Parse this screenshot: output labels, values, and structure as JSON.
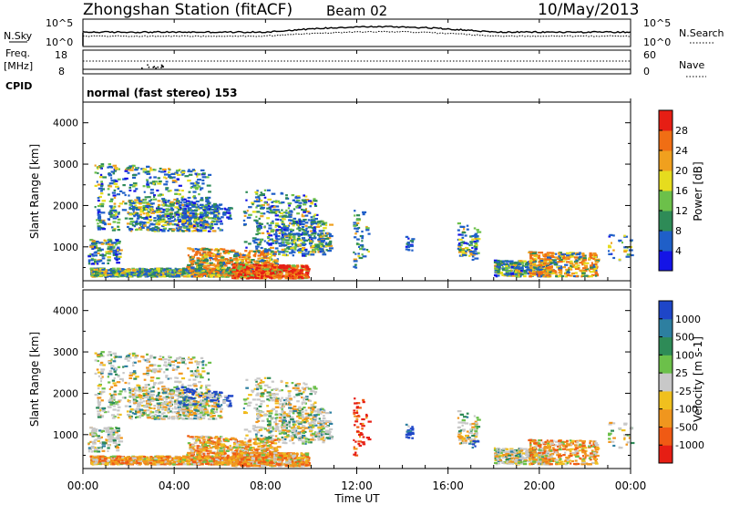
{
  "header": {
    "station": "Zhongshan Station (fitACF)",
    "beam": "Beam 02",
    "date": "10/May/2013"
  },
  "mode_text": "normal (fast stereo) 153",
  "top_panels": {
    "nsky_label": "N.Sky",
    "nsky_ticks": [
      "10^5",
      "10^0"
    ],
    "nsearch_label": "N.Search",
    "nsearch_ticks": [
      "10^5",
      "10^0"
    ],
    "freq_label_1": "Freq.",
    "freq_label_2": "[MHz]",
    "freq_ticks": [
      "18",
      "8"
    ],
    "nave_label": "Nave",
    "nave_ticks": [
      "60",
      "0"
    ],
    "cpid_label": "CPID"
  },
  "chart_data": [
    {
      "type": "heatmap",
      "name": "power",
      "ylabel": "Slant Range [km]",
      "ylim": [
        180,
        4500
      ],
      "yticks": [
        "4000",
        "3000",
        "2000",
        "1000"
      ],
      "colorbar_label": "Power [dB]",
      "colorbar_ticks": [
        "28",
        "24",
        "20",
        "16",
        "12",
        "8",
        "4"
      ],
      "colors": [
        "#1414e6",
        "#1f5fc8",
        "#2e8b57",
        "#6cc04a",
        "#e6dc1e",
        "#f0a01e",
        "#f06e14",
        "#e61e14"
      ],
      "color_ranges": [
        [
          0,
          6
        ],
        [
          6,
          10
        ],
        [
          10,
          14
        ],
        [
          14,
          18
        ],
        [
          18,
          22
        ],
        [
          22,
          26
        ],
        [
          26,
          30
        ],
        [
          30,
          33
        ]
      ]
    },
    {
      "type": "heatmap",
      "name": "velocity",
      "ylabel": "Slant Range [km]",
      "ylim": [
        180,
        4500
      ],
      "yticks": [
        "4000",
        "3000",
        "2000",
        "1000"
      ],
      "colorbar_label": "Velocity [m s-1]",
      "colorbar_ticks": [
        "1000",
        "500",
        "100",
        "25",
        "-25",
        "-100",
        "-500",
        "-1000"
      ],
      "colors": [
        "#1e46c8",
        "#2d7fa0",
        "#2e8b57",
        "#6cc04a",
        "#c8c8c8",
        "#f0c01e",
        "#f0961e",
        "#f05a14",
        "#e61e14"
      ]
    }
  ],
  "time_axis": {
    "ticks": [
      "00:00",
      "04:00",
      "08:00",
      "12:00",
      "16:00",
      "20:00",
      "00:00"
    ],
    "xlabel": "Time UT",
    "range_hours": [
      0,
      24
    ]
  }
}
